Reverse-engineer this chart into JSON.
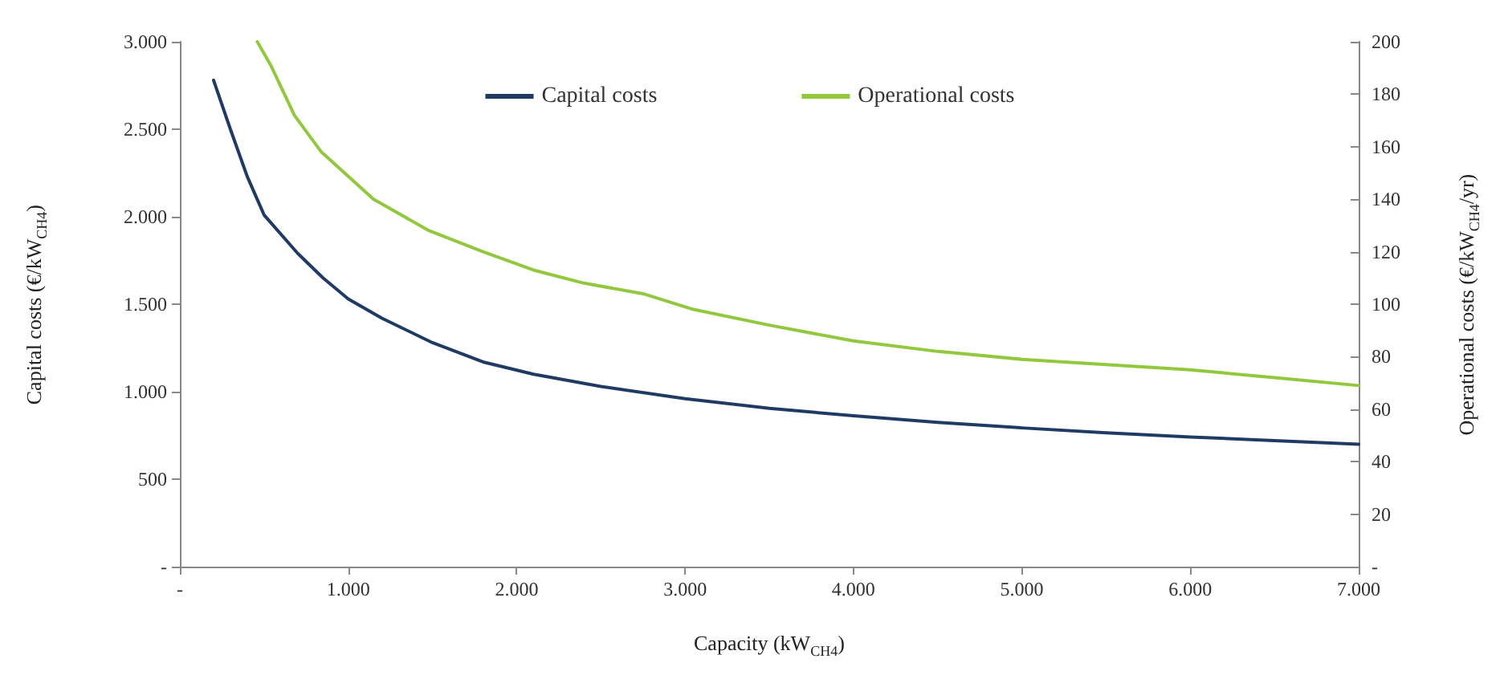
{
  "chart_data": {
    "type": "line",
    "xlabel": "Capacity (kW$_{CH4}$)",
    "ylabel": "Capital costs (€/kW$_{CH4}$)",
    "y2label": "Operational costs (€/kW$_{CH4}$/yr)",
    "series": [
      {
        "name": "Capital costs",
        "color": "#1f3b64",
        "x": [
          200,
          300,
          400,
          500,
          700,
          850,
          1000,
          1200,
          1500,
          1800,
          2100,
          2500,
          3000,
          3500,
          4000,
          4500,
          5000,
          5500,
          6000,
          6500,
          7000
        ],
        "values": [
          2780,
          2500,
          2230,
          2010,
          1790,
          1650,
          1530,
          1420,
          1280,
          1170,
          1100,
          1030,
          960,
          905,
          862,
          825,
          793,
          765,
          741,
          720,
          700
        ]
      },
      {
        "name": "Operational costs",
        "color": "#92c83e",
        "axis": "y2",
        "x": [
          460,
          540,
          680,
          840,
          1150,
          1480,
          1800,
          2100,
          2400,
          2750,
          3050,
          3500,
          4000,
          4500,
          5000,
          5500,
          6000,
          6500,
          7000
        ],
        "values": [
          200,
          191,
          172,
          158,
          140,
          128,
          120,
          113,
          108,
          104,
          98,
          92,
          86,
          82,
          79,
          77,
          75,
          72,
          69
        ]
      }
    ],
    "xlim": [
      0,
      7000
    ],
    "xticks": [
      {
        "value": 0,
        "label": "-"
      },
      {
        "value": 1000,
        "label": "1.000"
      },
      {
        "value": 2000,
        "label": "2.000"
      },
      {
        "value": 3000,
        "label": "3.000"
      },
      {
        "value": 4000,
        "label": "4.000"
      },
      {
        "value": 5000,
        "label": "5.000"
      },
      {
        "value": 6000,
        "label": "6.000"
      },
      {
        "value": 7000,
        "label": "7.000"
      }
    ],
    "ylim": [
      0,
      3000
    ],
    "yticks": [
      {
        "value": 0,
        "label": "-"
      },
      500,
      {
        "value": 1000,
        "label": "1.000"
      },
      {
        "value": 1500,
        "label": "1.500"
      },
      {
        "value": 2000,
        "label": "2.000"
      },
      {
        "value": 2500,
        "label": "2.500"
      },
      {
        "value": 3000,
        "label": "3.000"
      }
    ],
    "y2lim": [
      0,
      200
    ],
    "y2ticks": [
      {
        "value": 0,
        "label": "-"
      },
      20,
      40,
      60,
      80,
      100,
      120,
      140,
      160,
      180,
      200
    ],
    "grid": false,
    "legend": "top",
    "marker": "none",
    "line_style": "solid"
  }
}
